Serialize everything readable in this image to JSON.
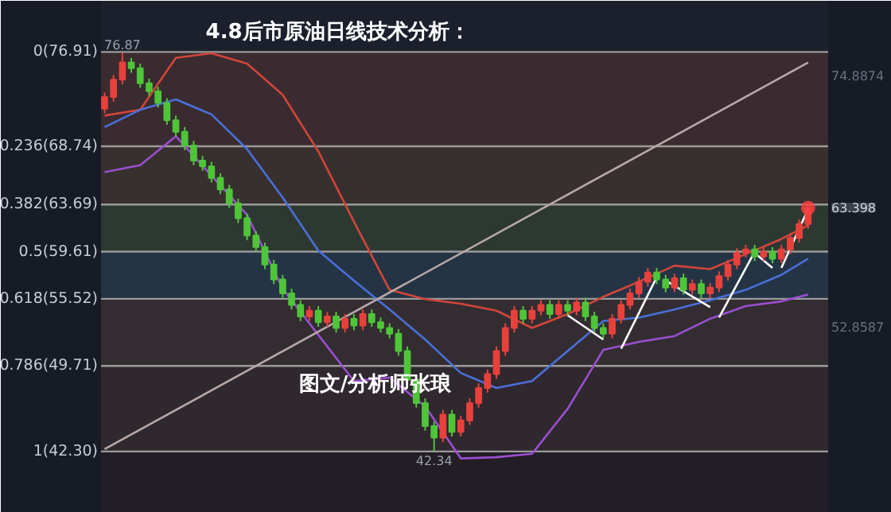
{
  "chart_data": {
    "type": "candlestick",
    "title": "4.8后市原油日线技术分析：",
    "categories": [
      null,
      null,
      null,
      null,
      null,
      null,
      null,
      null,
      null,
      null,
      null,
      null,
      null,
      null,
      null,
      null,
      null,
      null,
      null,
      null,
      null,
      null,
      null,
      null,
      null,
      null,
      null,
      null,
      null,
      null,
      null,
      null,
      null,
      null,
      null,
      null,
      null,
      null,
      null,
      null,
      null,
      null,
      null,
      null,
      null,
      null,
      null,
      null,
      null,
      null,
      null,
      null,
      null,
      null,
      null,
      null,
      null,
      null,
      null,
      null,
      null,
      null,
      null,
      null,
      null,
      null,
      null,
      null,
      null,
      null,
      null,
      null,
      null,
      null,
      null,
      null,
      null,
      null,
      null,
      null
    ],
    "ohlc": [
      [
        72.0,
        73.4,
        71.6,
        73.0
      ],
      [
        73.0,
        74.9,
        72.6,
        74.5
      ],
      [
        74.5,
        76.87,
        74.1,
        76.0
      ],
      [
        76.0,
        76.4,
        75.1,
        75.5
      ],
      [
        75.5,
        75.9,
        73.8,
        74.2
      ],
      [
        74.2,
        74.6,
        73.1,
        73.5
      ],
      [
        73.5,
        73.9,
        72.1,
        72.5
      ],
      [
        72.5,
        72.9,
        70.6,
        71.0
      ],
      [
        71.0,
        71.4,
        69.6,
        70.0
      ],
      [
        70.0,
        70.4,
        68.4,
        68.8
      ],
      [
        68.8,
        69.2,
        67.1,
        67.5
      ],
      [
        67.5,
        67.9,
        66.6,
        67.0
      ],
      [
        67.0,
        67.4,
        65.6,
        66.0
      ],
      [
        66.0,
        66.4,
        64.6,
        65.0
      ],
      [
        65.0,
        65.4,
        63.4,
        63.8
      ],
      [
        63.8,
        64.2,
        62.1,
        62.5
      ],
      [
        62.5,
        62.9,
        60.6,
        61.0
      ],
      [
        61.0,
        61.4,
        59.6,
        60.0
      ],
      [
        60.0,
        60.4,
        58.1,
        58.5
      ],
      [
        58.5,
        58.9,
        56.8,
        57.2
      ],
      [
        57.2,
        57.6,
        55.6,
        56.0
      ],
      [
        56.0,
        56.4,
        54.6,
        55.0
      ],
      [
        55.0,
        55.4,
        53.6,
        54.0
      ],
      [
        54.0,
        54.9,
        53.6,
        54.5
      ],
      [
        54.5,
        54.9,
        53.1,
        53.5
      ],
      [
        53.5,
        54.4,
        53.1,
        54.0
      ],
      [
        54.0,
        54.4,
        52.6,
        53.0
      ],
      [
        53.0,
        54.2,
        52.6,
        53.8
      ],
      [
        53.8,
        54.2,
        52.8,
        53.2
      ],
      [
        53.2,
        54.6,
        52.8,
        54.2
      ],
      [
        54.2,
        54.6,
        53.1,
        53.5
      ],
      [
        53.5,
        53.9,
        52.6,
        53.0
      ],
      [
        53.0,
        53.4,
        52.1,
        52.5
      ],
      [
        52.5,
        52.9,
        50.6,
        51.0
      ],
      [
        51.0,
        51.4,
        48.1,
        48.5
      ],
      [
        48.5,
        48.9,
        46.1,
        46.5
      ],
      [
        46.5,
        46.9,
        44.1,
        44.5
      ],
      [
        44.5,
        44.9,
        42.34,
        43.5
      ],
      [
        43.5,
        45.9,
        43.1,
        45.5
      ],
      [
        45.5,
        45.9,
        43.6,
        44.0
      ],
      [
        44.0,
        45.4,
        43.6,
        45.0
      ],
      [
        45.0,
        46.9,
        44.6,
        46.5
      ],
      [
        46.5,
        48.2,
        46.1,
        47.8
      ],
      [
        47.8,
        49.4,
        47.4,
        49.0
      ],
      [
        49.0,
        51.4,
        48.6,
        51.0
      ],
      [
        51.0,
        53.4,
        50.6,
        53.0
      ],
      [
        53.0,
        54.9,
        52.6,
        54.5
      ],
      [
        54.5,
        54.9,
        53.4,
        53.8
      ],
      [
        53.8,
        54.9,
        53.4,
        54.5
      ],
      [
        54.5,
        55.4,
        54.1,
        55.0
      ],
      [
        55.0,
        55.4,
        53.8,
        54.2
      ],
      [
        54.2,
        55.4,
        53.8,
        55.0
      ],
      [
        55.0,
        55.4,
        54.1,
        54.5
      ],
      [
        54.5,
        55.6,
        54.1,
        55.2
      ],
      [
        55.2,
        55.6,
        53.6,
        54.0
      ],
      [
        54.0,
        54.4,
        52.6,
        53.0
      ],
      [
        53.0,
        53.4,
        52.1,
        52.5
      ],
      [
        52.5,
        54.2,
        52.1,
        53.8
      ],
      [
        53.8,
        55.4,
        53.4,
        55.0
      ],
      [
        55.0,
        56.4,
        54.6,
        56.0
      ],
      [
        56.0,
        57.4,
        55.6,
        57.0
      ],
      [
        57.0,
        58.2,
        56.6,
        57.8
      ],
      [
        57.8,
        58.2,
        56.8,
        57.2
      ],
      [
        57.2,
        57.6,
        56.1,
        56.5
      ],
      [
        56.5,
        57.7,
        56.1,
        57.3
      ],
      [
        57.3,
        57.7,
        55.9,
        56.3
      ],
      [
        56.3,
        57.2,
        55.9,
        56.8
      ],
      [
        56.8,
        57.2,
        55.6,
        56.0
      ],
      [
        56.0,
        56.9,
        55.6,
        56.5
      ],
      [
        56.5,
        57.9,
        56.1,
        57.5
      ],
      [
        57.5,
        58.9,
        57.1,
        58.5
      ],
      [
        58.5,
        59.9,
        58.1,
        59.5
      ],
      [
        59.5,
        60.2,
        59.1,
        59.8
      ],
      [
        59.8,
        60.2,
        58.8,
        59.2
      ],
      [
        59.2,
        60.0,
        58.8,
        59.6
      ],
      [
        59.6,
        60.0,
        58.6,
        59.0
      ],
      [
        59.0,
        60.2,
        58.6,
        59.8
      ],
      [
        59.8,
        61.2,
        59.4,
        60.8
      ],
      [
        60.8,
        62.4,
        60.4,
        62.0
      ],
      [
        62.0,
        63.8,
        61.6,
        63.4
      ]
    ],
    "series": [
      {
        "type": "line",
        "color": "#d2453a",
        "values": [
          71.4,
          null,
          null,
          null,
          71.9,
          null,
          null,
          null,
          76.4,
          null,
          null,
          null,
          76.8,
          null,
          null,
          null,
          75.9,
          null,
          null,
          null,
          73.2,
          null,
          null,
          null,
          68.3,
          null,
          null,
          null,
          62.2,
          null,
          null,
          null,
          56.3,
          null,
          null,
          null,
          55.5,
          null,
          null,
          null,
          55.1,
          null,
          null,
          null,
          54.5,
          null,
          null,
          null,
          53.0,
          null,
          null,
          null,
          54.2,
          null,
          null,
          null,
          55.7,
          null,
          null,
          null,
          57.0,
          null,
          null,
          null,
          58.4,
          null,
          null,
          null,
          58.1,
          null,
          null,
          null,
          59.4,
          null,
          null,
          null,
          60.7,
          null,
          null,
          61.9
        ]
      },
      {
        "type": "line",
        "color": "#4a6fd8",
        "values": [
          70.4,
          null,
          null,
          null,
          71.9,
          null,
          null,
          null,
          72.8,
          null,
          null,
          null,
          71.5,
          null,
          null,
          null,
          68.5,
          null,
          null,
          null,
          64.3,
          null,
          null,
          null,
          59.7,
          null,
          null,
          null,
          57.1,
          null,
          null,
          null,
          54.6,
          null,
          null,
          null,
          52.0,
          null,
          null,
          null,
          49.1,
          null,
          null,
          null,
          47.8,
          null,
          null,
          null,
          48.4,
          null,
          null,
          null,
          51.0,
          null,
          null,
          null,
          53.6,
          null,
          null,
          null,
          53.9,
          null,
          null,
          null,
          54.6,
          null,
          null,
          null,
          55.4,
          null,
          null,
          null,
          56.3,
          null,
          null,
          null,
          57.6,
          null,
          null,
          59.0
        ]
      },
      {
        "type": "line",
        "color": "#9b4fd0",
        "values": [
          66.5,
          null,
          null,
          null,
          67.1,
          null,
          null,
          null,
          69.6,
          null,
          null,
          null,
          66.2,
          null,
          null,
          null,
          62.8,
          null,
          null,
          null,
          56.4,
          null,
          null,
          null,
          52.4,
          null,
          null,
          null,
          48.4,
          null,
          null,
          null,
          48.7,
          null,
          null,
          null,
          46.2,
          null,
          null,
          null,
          41.7,
          null,
          null,
          null,
          41.8,
          null,
          null,
          null,
          42.1,
          null,
          null,
          null,
          46.0,
          null,
          null,
          null,
          51.1,
          null,
          null,
          null,
          51.8,
          null,
          null,
          null,
          52.3,
          null,
          null,
          null,
          53.8,
          null,
          null,
          null,
          54.9,
          null,
          null,
          null,
          55.3,
          null,
          null,
          55.9
        ]
      },
      {
        "type": "line",
        "color": "#b8a8a8",
        "values": [
          42.5,
          null,
          null,
          null,
          null,
          null,
          null,
          null,
          null,
          null,
          null,
          null,
          null,
          null,
          null,
          null,
          null,
          null,
          null,
          null,
          null,
          null,
          null,
          null,
          null,
          null,
          null,
          null,
          null,
          null,
          null,
          null,
          null,
          null,
          null,
          null,
          null,
          null,
          null,
          null,
          null,
          null,
          null,
          null,
          null,
          null,
          null,
          null,
          null,
          null,
          null,
          null,
          null,
          null,
          null,
          null,
          null,
          null,
          null,
          null,
          null,
          null,
          null,
          null,
          null,
          null,
          null,
          null,
          null,
          null,
          null,
          null,
          null,
          null,
          null,
          null,
          null,
          null,
          null,
          76.0
        ]
      },
      {
        "type": "line",
        "color": "#ffffff",
        "values": [
          null,
          null,
          null,
          null,
          null,
          null,
          null,
          null,
          null,
          null,
          null,
          null,
          null,
          null,
          null,
          null,
          null,
          null,
          null,
          null,
          null,
          null,
          null,
          null,
          null,
          null,
          null,
          null,
          null,
          null,
          null,
          null,
          null,
          null,
          null,
          null,
          null,
          null,
          null,
          null,
          null,
          null,
          null,
          null,
          null,
          null,
          null,
          null,
          null,
          null,
          null,
          null,
          54.1,
          null,
          null,
          null,
          52.0,
          null,
          null,
          null,
          null,
          null,
          null,
          null,
          null,
          null,
          null,
          null,
          null,
          null,
          null,
          null,
          null,
          null,
          null,
          null,
          null,
          null,
          null,
          null
        ]
      },
      {
        "type": "line",
        "color": "#ffffff",
        "values": [
          null,
          null,
          null,
          null,
          null,
          null,
          null,
          null,
          null,
          null,
          null,
          null,
          null,
          null,
          null,
          null,
          null,
          null,
          null,
          null,
          null,
          null,
          null,
          null,
          null,
          null,
          null,
          null,
          null,
          null,
          null,
          null,
          null,
          null,
          null,
          null,
          null,
          null,
          null,
          null,
          null,
          null,
          null,
          null,
          null,
          null,
          null,
          null,
          null,
          null,
          null,
          null,
          null,
          null,
          null,
          null,
          null,
          null,
          51.2,
          null,
          null,
          null,
          57.4,
          null,
          null,
          null,
          null,
          null,
          null,
          null,
          null,
          null,
          null,
          null,
          null,
          null,
          null,
          null,
          null,
          null
        ]
      },
      {
        "type": "line",
        "color": "#ffffff",
        "values": [
          null,
          null,
          null,
          null,
          null,
          null,
          null,
          null,
          null,
          null,
          null,
          null,
          null,
          null,
          null,
          null,
          null,
          null,
          null,
          null,
          null,
          null,
          null,
          null,
          null,
          null,
          null,
          null,
          null,
          null,
          null,
          null,
          null,
          null,
          null,
          null,
          null,
          null,
          null,
          null,
          null,
          null,
          null,
          null,
          null,
          null,
          null,
          null,
          null,
          null,
          null,
          null,
          null,
          null,
          null,
          null,
          null,
          null,
          null,
          null,
          null,
          null,
          null,
          57.1,
          null,
          null,
          null,
          null,
          54.8,
          null,
          null,
          null,
          null,
          null,
          null,
          null,
          null,
          null,
          null,
          null
        ]
      },
      {
        "type": "line",
        "color": "#ffffff",
        "values": [
          null,
          null,
          null,
          null,
          null,
          null,
          null,
          null,
          null,
          null,
          null,
          null,
          null,
          null,
          null,
          null,
          null,
          null,
          null,
          null,
          null,
          null,
          null,
          null,
          null,
          null,
          null,
          null,
          null,
          null,
          null,
          null,
          null,
          null,
          null,
          null,
          null,
          null,
          null,
          null,
          null,
          null,
          null,
          null,
          null,
          null,
          null,
          null,
          null,
          null,
          null,
          null,
          null,
          null,
          null,
          null,
          null,
          null,
          null,
          null,
          null,
          null,
          null,
          null,
          null,
          null,
          null,
          null,
          null,
          53.9,
          null,
          null,
          null,
          59.6,
          null,
          null,
          null,
          null,
          null,
          null
        ]
      },
      {
        "type": "line",
        "color": "#ffffff",
        "values": [
          null,
          null,
          null,
          null,
          null,
          null,
          null,
          null,
          null,
          null,
          null,
          null,
          null,
          null,
          null,
          null,
          null,
          null,
          null,
          null,
          null,
          null,
          null,
          null,
          null,
          null,
          null,
          null,
          null,
          null,
          null,
          null,
          null,
          null,
          null,
          null,
          null,
          null,
          null,
          null,
          null,
          null,
          null,
          null,
          null,
          null,
          null,
          null,
          null,
          null,
          null,
          null,
          null,
          null,
          null,
          null,
          null,
          null,
          null,
          null,
          null,
          null,
          null,
          null,
          null,
          null,
          null,
          null,
          null,
          null,
          null,
          null,
          null,
          59.5,
          null,
          58.2,
          null,
          null,
          null,
          null
        ]
      },
      {
        "type": "line",
        "color": "#ffffff",
        "values": [
          null,
          null,
          null,
          null,
          null,
          null,
          null,
          null,
          null,
          null,
          null,
          null,
          null,
          null,
          null,
          null,
          null,
          null,
          null,
          null,
          null,
          null,
          null,
          null,
          null,
          null,
          null,
          null,
          null,
          null,
          null,
          null,
          null,
          null,
          null,
          null,
          null,
          null,
          null,
          null,
          null,
          null,
          null,
          null,
          null,
          null,
          null,
          null,
          null,
          null,
          null,
          null,
          null,
          null,
          null,
          null,
          null,
          null,
          null,
          null,
          null,
          null,
          null,
          null,
          null,
          null,
          null,
          null,
          null,
          null,
          null,
          null,
          null,
          null,
          null,
          null,
          58.2,
          null,
          null,
          63.3
        ]
      }
    ],
    "tick_labels": false,
    "ref_lines": [
      {
        "axis": "y",
        "value": 76.91,
        "label": "0(76.91)",
        "color": "#9a9a9a"
      },
      {
        "axis": "y",
        "value": 68.74,
        "label": "0.236(68.74)",
        "color": "#9a9a9a"
      },
      {
        "axis": "y",
        "value": 63.69,
        "label": "0.382(63.69)",
        "color": "#9a9a9a"
      },
      {
        "axis": "y",
        "value": 59.61,
        "label": "0.5(59.61)",
        "color": "#9a9a9a"
      },
      {
        "axis": "y",
        "value": 55.52,
        "label": "0.618(55.52)",
        "color": "#9a9a9a"
      },
      {
        "axis": "y",
        "value": 49.71,
        "label": "0.786(49.71)",
        "color": "#9a9a9a"
      },
      {
        "axis": "y",
        "value": 42.3,
        "label": "1(42.30)",
        "color": "#9a9a9a"
      }
    ],
    "bands": [
      {
        "axis": "y",
        "from": 68.74,
        "to": 76.91,
        "color": "#3a2b30"
      },
      {
        "axis": "y",
        "from": 63.69,
        "to": 68.74,
        "color": "#37302f"
      },
      {
        "axis": "y",
        "from": 59.61,
        "to": 63.69,
        "color": "#2e3833"
      },
      {
        "axis": "y",
        "from": 55.52,
        "to": 59.61,
        "color": "#243445"
      },
      {
        "axis": "y",
        "from": 49.71,
        "to": 55.52,
        "color": "#332d32"
      },
      {
        "axis": "y",
        "from": 42.3,
        "to": 49.71,
        "color": "#30282f"
      }
    ],
    "annotations": [
      {
        "text": "76.87",
        "y": 76.87
      },
      {
        "text": "42.34",
        "y": 42.34
      },
      "74.8874",
      "63.398",
      "52.8587",
      "图文/分析师张琅"
    ]
  }
}
